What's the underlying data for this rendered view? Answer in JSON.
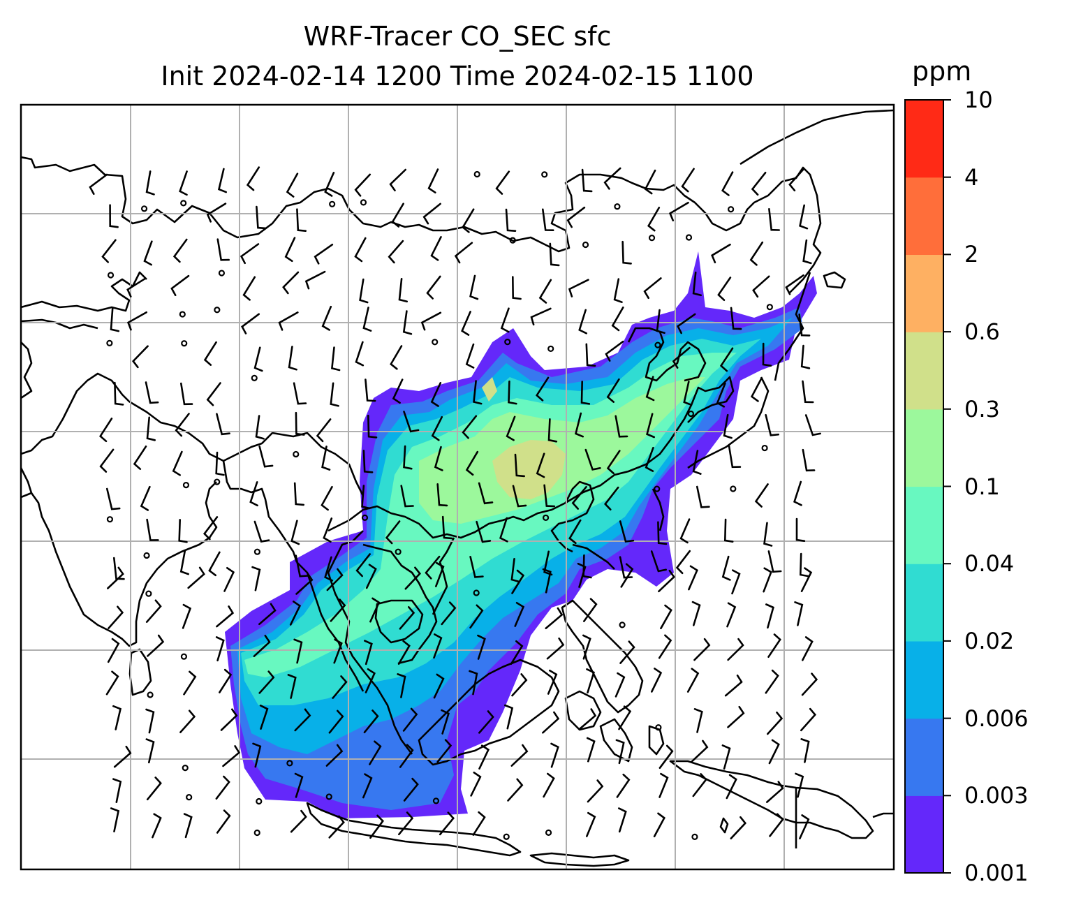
{
  "title": {
    "line1": "WRF-Tracer CO_SEC sfc",
    "line2": "Init 2024-02-14 1200 Time 2024-02-15 1100"
  },
  "colorbar": {
    "unit": "ppm",
    "levels": [
      "0.001",
      "0.003",
      "0.006",
      "0.02",
      "0.04",
      "0.1",
      "0.3",
      "0.6",
      "2",
      "4",
      "10"
    ],
    "colors": [
      "#6428fa",
      "#3778f0",
      "#08b0e8",
      "#30dcd2",
      "#68f8c0",
      "#9cf89c",
      "#d0e08a",
      "#feb062",
      "#ff6e3a",
      "#ff2a16"
    ]
  },
  "map": {
    "gridlines": true,
    "gridline_color": "#b0b0b0",
    "coastline_color": "#000000",
    "wind_symbol": "wind-barb",
    "calm_symbol": "calm-circle"
  }
}
